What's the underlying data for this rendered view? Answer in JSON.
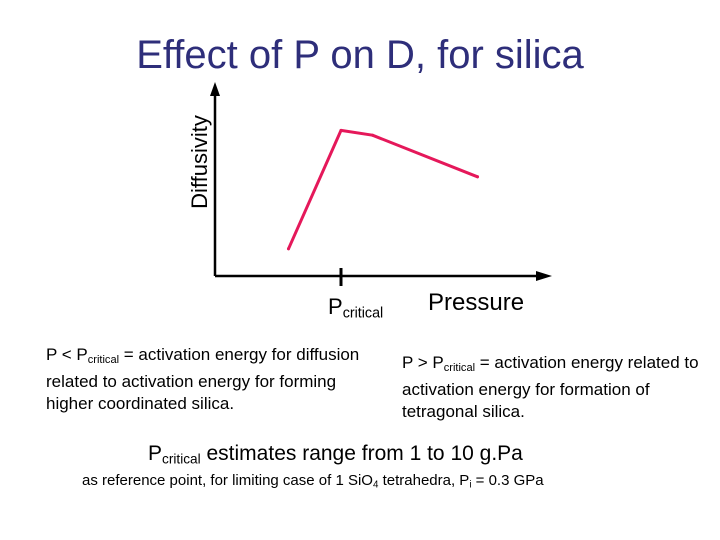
{
  "title": "Effect of P on D, for silica",
  "axes": {
    "ylabel": "Diffusivity",
    "xlabel": "Pressure",
    "marker_main": "P",
    "marker_sub": "critical"
  },
  "colors": {
    "title": "#2e2e7a",
    "curve": "#e5185a",
    "axis": "#000000"
  },
  "chart_data": {
    "type": "line",
    "series": [
      {
        "x": [
          0.28,
          0.48,
          0.6,
          1.0
        ],
        "y": [
          0.17,
          0.91,
          0.88,
          0.62
        ]
      }
    ],
    "xlim": [
      0,
      1.2
    ],
    "ylim": [
      0,
      1.1
    ],
    "critical_x": 0.48
  },
  "left_text": {
    "p": "P < P",
    "sub": "critical",
    "rest": " = activation energy for diffusion related to activation energy for forming higher coordinated silica."
  },
  "right_text": {
    "p": "P > P",
    "sub": "critical",
    "rest": " = activation energy related to activation energy for formation of tetragonal silica."
  },
  "estimate": {
    "p": "P",
    "sub": "critical",
    "rest": " estimates range from 1 to 10 g.Pa"
  },
  "reference": {
    "part1": "as reference point, for limiting case of 1 SiO",
    "sub1": "4",
    "part2": " tetrahedra, P",
    "sub2": "i",
    "part3": " = 0.3 GPa"
  }
}
